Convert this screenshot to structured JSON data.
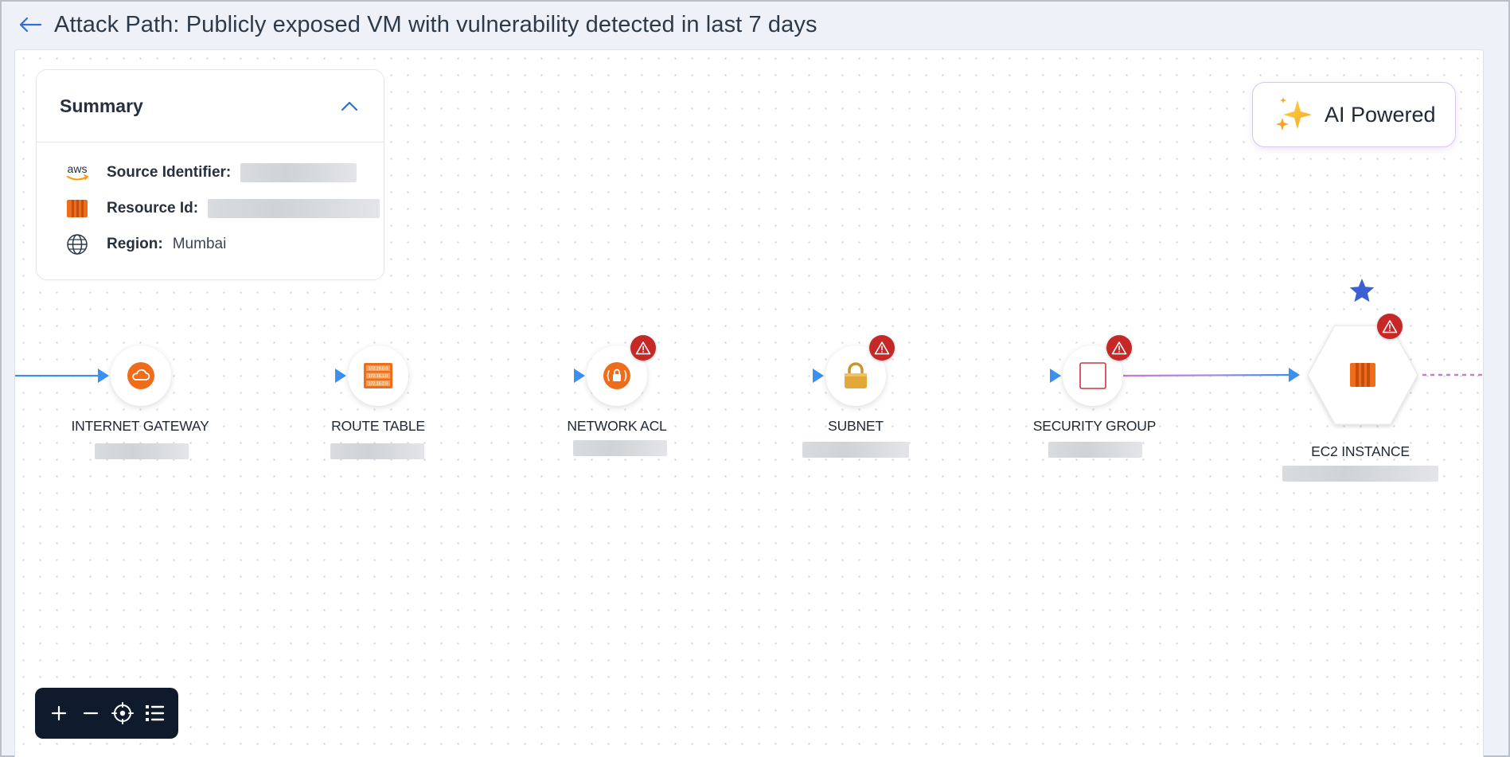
{
  "header": {
    "title": "Attack Path: Publicly exposed VM with vulnerability detected in last 7 days",
    "back_icon": "arrow-left-icon"
  },
  "summary": {
    "title": "Summary",
    "rows": [
      {
        "label": "Source Identifier:",
        "value": "",
        "icon": "aws-logo-icon"
      },
      {
        "label": "Resource Id:",
        "value": "",
        "icon": "ec2-icon"
      },
      {
        "label": "Region:",
        "value": "Mumbai",
        "icon": "globe-icon"
      }
    ]
  },
  "ai_badge": {
    "label": "AI Powered",
    "icon": "sparkles-icon"
  },
  "nodes": [
    {
      "label": "INTERNET GATEWAY",
      "icon": "cloud-icon",
      "alert": false
    },
    {
      "label": "ROUTE TABLE",
      "icon": "route-table-icon",
      "alert": false
    },
    {
      "label": "NETWORK ACL",
      "icon": "network-acl-icon",
      "alert": true
    },
    {
      "label": "SUBNET",
      "icon": "padlock-icon",
      "alert": true
    },
    {
      "label": "SECURITY GROUP",
      "icon": "security-group-icon",
      "alert": true
    },
    {
      "label": "EC2 INSTANCE",
      "icon": "ec2-icon",
      "alert": true,
      "starred": true
    }
  ],
  "controls": {
    "zoom_in": "plus-icon",
    "zoom_out": "minus-icon",
    "fit": "crosshair-icon",
    "legend": "list-icon"
  },
  "colors": {
    "edge_blue": "#3b8ff0",
    "edge_purple": "#c77ad9",
    "aws_orange": "#ef6c1a",
    "alert_red": "#c62828",
    "star_blue": "#3d5fd6",
    "toolbar_bg": "#0f1a2c"
  }
}
